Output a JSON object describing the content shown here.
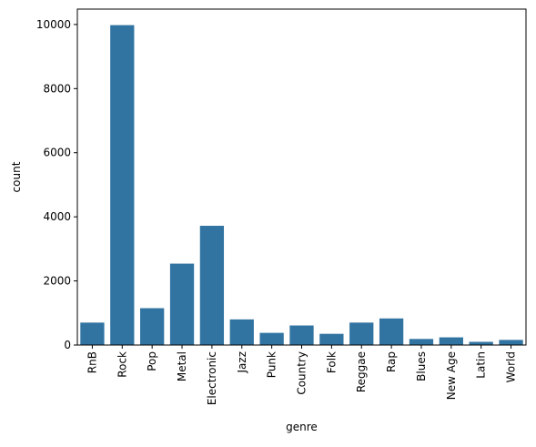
{
  "chart_data": {
    "type": "bar",
    "title": "",
    "xlabel": "genre",
    "ylabel": "count",
    "categories": [
      "RnB",
      "Rock",
      "Pop",
      "Metal",
      "Electronic",
      "Jazz",
      "Punk",
      "Country",
      "Folk",
      "Reggae",
      "Rap",
      "Blues",
      "New Age",
      "Latin",
      "World"
    ],
    "values": [
      700,
      9980,
      1150,
      2540,
      3720,
      800,
      380,
      610,
      350,
      700,
      830,
      190,
      240,
      100,
      160
    ],
    "ylim": [
      0,
      10480
    ],
    "yticks": [
      0,
      2000,
      4000,
      6000,
      8000,
      10000
    ],
    "grid": false,
    "bar_color": "#3274a1"
  }
}
